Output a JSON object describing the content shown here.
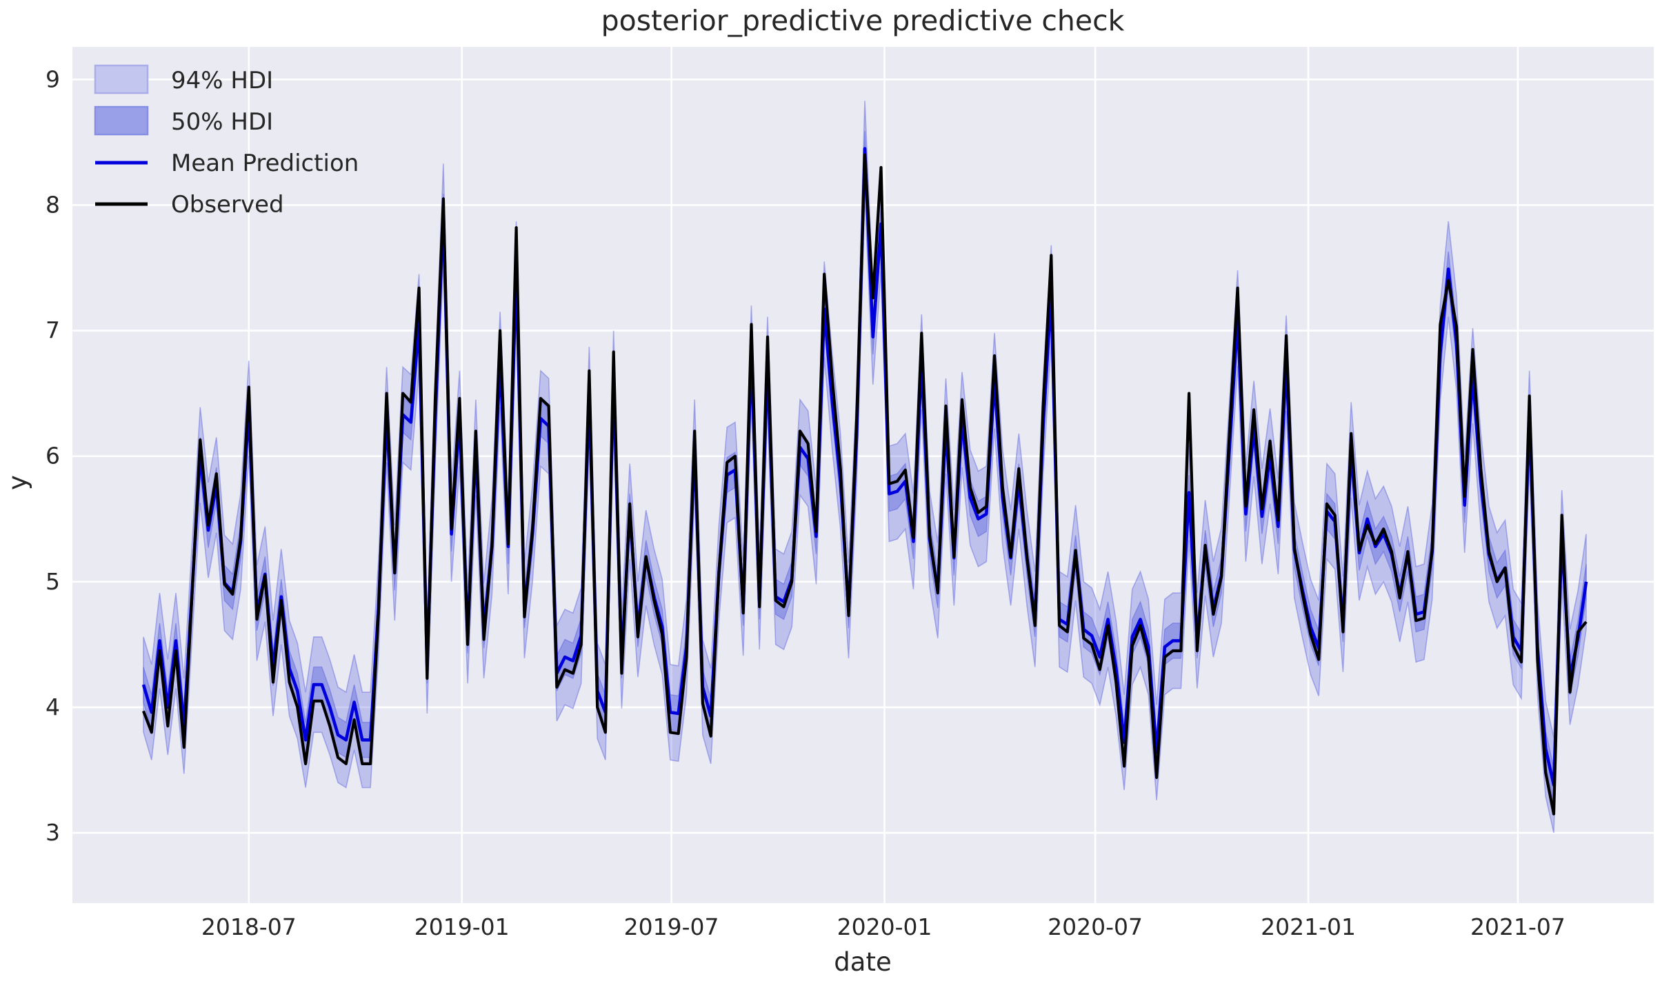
{
  "figure": {
    "title": "posterior_predictive predictive check",
    "xlabel": "date",
    "ylabel": "y"
  },
  "legend": {
    "items": [
      {
        "label": "94% HDI",
        "kind": "patch",
        "fill": "#c3c6ee",
        "edge": "#a9aeea"
      },
      {
        "label": "50% HDI",
        "kind": "patch",
        "fill": "#9aa0e8",
        "edge": "#868ee3"
      },
      {
        "label": "Mean Prediction",
        "kind": "line",
        "color": "#0000dd"
      },
      {
        "label": "Observed",
        "kind": "line",
        "color": "#000000"
      }
    ]
  },
  "chart_data": {
    "type": "line",
    "title": "posterior_predictive predictive check",
    "xlabel": "date",
    "ylabel": "y",
    "x_start_date": "2018-04-01",
    "x_frequency": "weekly",
    "x_tick_labels": [
      "2018-07",
      "2019-01",
      "2019-07",
      "2020-01",
      "2020-07",
      "2021-01",
      "2021-07"
    ],
    "y_ticks": [
      3,
      4,
      5,
      6,
      7,
      8,
      9
    ],
    "ylim": [
      2.44,
      9.26
    ],
    "grid": true,
    "legend_position": "upper-left",
    "plot_bg": "#eaeaf2",
    "grid_color": "#ffffff",
    "band_rgb": "90,98,222",
    "band94_alpha": 0.3,
    "band50_alpha": 0.42,
    "hdi94_halfwidth": 0.38,
    "hdi50_halfwidth": 0.14,
    "series": [
      {
        "name": "Observed",
        "color": "#000000",
        "values": [
          3.97,
          3.8,
          4.45,
          3.85,
          4.45,
          3.68,
          4.9,
          6.13,
          5.45,
          5.86,
          4.98,
          4.9,
          5.35,
          6.55,
          4.7,
          5.05,
          4.2,
          4.85,
          4.2,
          4.0,
          3.55,
          4.05,
          4.05,
          3.85,
          3.6,
          3.55,
          3.9,
          3.55,
          3.55,
          4.75,
          6.5,
          5.07,
          6.5,
          6.43,
          7.34,
          4.23,
          6.46,
          8.05,
          5.42,
          6.46,
          4.5,
          6.2,
          4.54,
          5.3,
          7.0,
          5.3,
          7.82,
          4.72,
          5.42,
          6.46,
          6.4,
          4.16,
          4.3,
          4.27,
          4.5,
          6.68,
          4.0,
          3.8,
          6.83,
          4.27,
          5.62,
          4.56,
          5.2,
          4.85,
          4.58,
          3.8,
          3.79,
          4.4,
          6.2,
          4.03,
          3.77,
          5.07,
          5.95,
          6.0,
          4.75,
          7.05,
          4.8,
          6.95,
          4.85,
          4.8,
          5.0,
          6.2,
          6.1,
          5.4,
          7.45,
          6.6,
          5.9,
          4.73,
          6.3,
          8.4,
          7.26,
          8.3,
          5.78,
          5.8,
          5.89,
          5.35,
          6.98,
          5.37,
          4.91,
          6.4,
          5.2,
          6.45,
          5.75,
          5.55,
          5.6,
          6.8,
          5.75,
          5.2,
          5.9,
          5.2,
          4.65,
          6.4,
          7.6,
          4.65,
          4.6,
          5.25,
          4.55,
          4.5,
          4.3,
          4.65,
          4.2,
          3.53,
          4.49,
          4.65,
          4.4,
          3.44,
          4.4,
          4.45,
          4.45,
          6.5,
          4.45,
          5.29,
          4.74,
          5.04,
          6.2,
          7.34,
          5.6,
          6.37,
          5.58,
          6.12,
          5.49,
          6.96,
          5.27,
          4.9,
          4.58,
          4.38,
          5.62,
          5.53,
          4.6,
          6.18,
          5.25,
          5.45,
          5.3,
          5.42,
          5.24,
          4.87,
          5.24,
          4.69,
          4.71,
          5.26,
          7.05,
          7.4,
          7.03,
          5.68,
          6.85,
          5.9,
          5.24,
          5.0,
          5.11,
          4.49,
          4.36,
          6.48,
          4.38,
          3.48,
          3.15,
          5.53,
          4.12,
          4.6,
          4.68
        ]
      },
      {
        "name": "Mean Prediction",
        "color": "#0000dd",
        "values": [
          4.18,
          3.96,
          4.53,
          4.0,
          4.53,
          3.85,
          4.92,
          6.01,
          5.41,
          5.77,
          4.99,
          4.92,
          5.32,
          6.38,
          4.75,
          5.06,
          4.31,
          4.88,
          4.31,
          4.13,
          3.74,
          4.18,
          4.18,
          4.0,
          3.78,
          3.74,
          4.04,
          3.74,
          3.74,
          4.79,
          6.33,
          5.07,
          6.33,
          6.27,
          7.07,
          4.33,
          6.3,
          7.95,
          5.38,
          6.3,
          4.57,
          6.07,
          4.61,
          5.28,
          6.77,
          5.28,
          7.49,
          4.77,
          5.38,
          6.3,
          6.24,
          4.27,
          4.4,
          4.37,
          4.57,
          6.49,
          4.13,
          3.96,
          6.62,
          4.37,
          5.56,
          4.62,
          5.19,
          4.88,
          4.64,
          3.96,
          3.95,
          4.48,
          6.07,
          4.16,
          3.93,
          5.07,
          5.85,
          5.89,
          4.79,
          6.82,
          4.84,
          6.73,
          4.88,
          4.84,
          5.02,
          6.07,
          5.98,
          5.36,
          7.17,
          6.42,
          5.8,
          4.77,
          6.16,
          8.45,
          6.95,
          7.85,
          5.7,
          5.72,
          5.8,
          5.32,
          6.75,
          5.34,
          4.93,
          6.24,
          5.19,
          6.29,
          5.67,
          5.5,
          5.54,
          6.6,
          5.67,
          5.19,
          5.8,
          5.19,
          4.7,
          6.24,
          7.3,
          4.7,
          4.66,
          5.23,
          4.62,
          4.57,
          4.4,
          4.7,
          4.31,
          3.72,
          4.56,
          4.7,
          4.48,
          3.64,
          4.48,
          4.53,
          4.53,
          5.71,
          4.53,
          5.27,
          4.78,
          5.05,
          6.07,
          7.1,
          5.54,
          6.22,
          5.52,
          6.0,
          5.44,
          6.74,
          5.25,
          4.93,
          4.64,
          4.47,
          5.56,
          5.48,
          4.66,
          6.05,
          5.23,
          5.5,
          5.28,
          5.38,
          5.22,
          4.9,
          5.22,
          4.74,
          4.76,
          5.24,
          6.82,
          7.49,
          6.9,
          5.61,
          6.64,
          5.8,
          5.22,
          5.01,
          5.11,
          4.56,
          4.45,
          6.3,
          4.47,
          3.67,
          3.38,
          5.35,
          4.24,
          4.55,
          5.0
        ]
      }
    ]
  }
}
